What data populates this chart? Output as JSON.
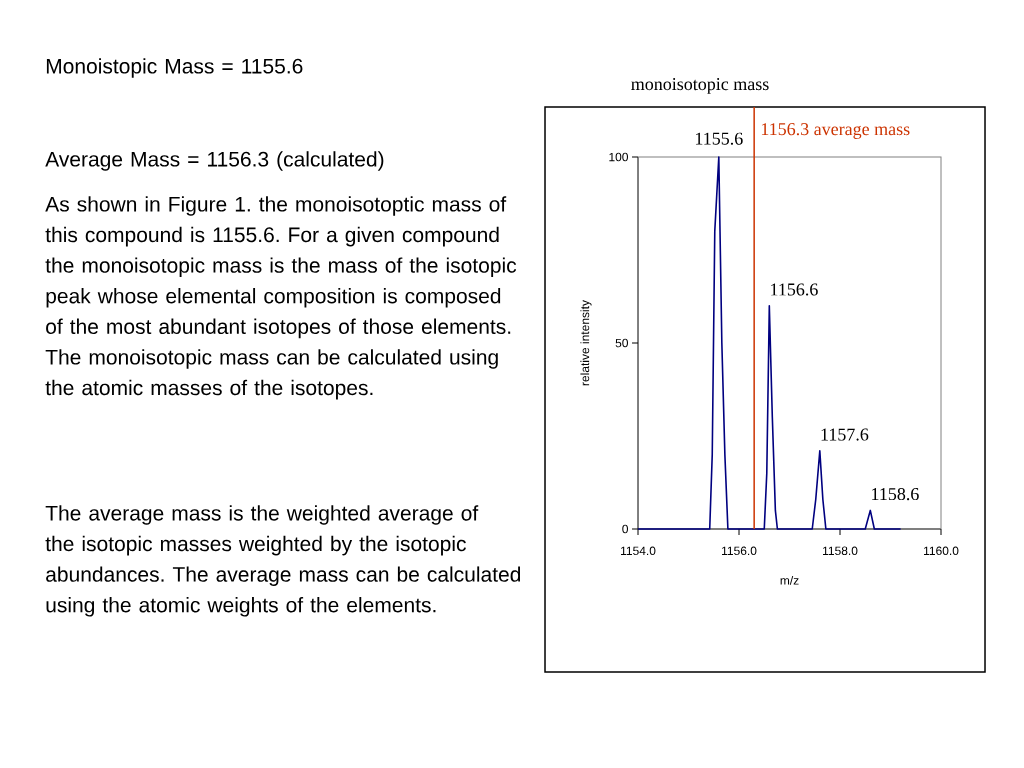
{
  "chart_data": {
    "type": "line",
    "title": "monoisotopic mass",
    "xlabel": "m/z",
    "ylabel": "relative intensity",
    "x": [
      1154,
      1155.42,
      1155.47,
      1155.52,
      1155.6,
      1155.66,
      1155.72,
      1155.78,
      1156.5,
      1156.55,
      1156.6,
      1156.66,
      1156.72,
      1156.76,
      1157.45,
      1157.52,
      1157.6,
      1157.66,
      1157.72,
      1158.5,
      1158.6,
      1158.68,
      1159.2
    ],
    "series": [
      {
        "color": "#000080",
        "values": [
          0,
          0,
          20,
          80,
          100,
          50,
          20,
          0,
          0,
          15,
          60,
          30,
          5,
          0,
          0,
          8,
          21,
          8,
          0,
          0,
          5,
          0,
          0
        ]
      }
    ],
    "xlim": [
      1154,
      1160
    ],
    "ylim": [
      0,
      100
    ],
    "xticks": [
      {
        "value": 1154,
        "label": "1154.0"
      },
      {
        "value": 1156,
        "label": "1156.0"
      },
      {
        "value": 1158,
        "label": "1158.0"
      },
      {
        "value": 1160,
        "label": "1160.0"
      }
    ],
    "yticks": [
      0,
      50,
      100
    ],
    "ref_lines": [
      {
        "axis": "x",
        "value": 1156.3,
        "label": "1156.3 average mass",
        "color": "#cc3300"
      }
    ],
    "annotations": [
      {
        "text": "1155.6",
        "x": 1155.6,
        "y": 100
      },
      {
        "text": "1156.6",
        "x": 1156.6,
        "y": 60
      },
      {
        "text": "1157.6",
        "x": 1157.6,
        "y": 21
      },
      {
        "text": "1158.6",
        "x": 1158.6,
        "y": 5
      },
      "Monoistopic Mass = 1155.6",
      "Average Mass = 1156.3 (calculated)",
      "As shown in Figure 1. the monoisotoptic mass of this compound is 1155.6. For a given compound the monoisotopic mass is the mass of the isotopic peak whose elemental composition is composed of the most abundant isotopes of those elements. The monoisotopic mass can be calculated using the atomic masses of the isotopes.",
      "The average mass is the weighted average of the isotopic masses weighted by the isotopic abundances.  The average mass can be calculated using the atomic weights of the elements."
    ],
    "grid": false,
    "marker": "none",
    "line_style": "solid"
  }
}
